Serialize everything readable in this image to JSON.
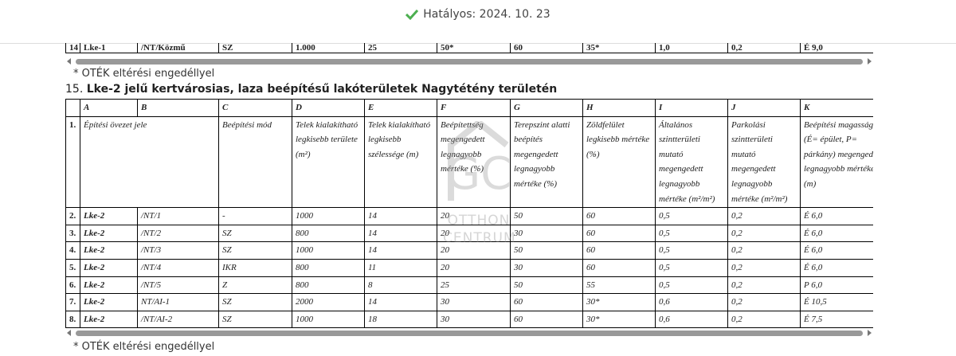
{
  "status": {
    "label": "Hatályos: 2024. 10. 23"
  },
  "prev_table": {
    "rows": [
      [
        "14",
        "Lke-1",
        "/NT/Közmű",
        "SZ",
        "1.000",
        "25",
        "50*",
        "60",
        "35*",
        "1,0",
        "0,2",
        "É 9,0"
      ]
    ]
  },
  "prev_footnote": "* OTÉK eltérési engedéllyel",
  "section": {
    "number": "15.",
    "title": "Lke-2 jelű kertvárosias, laza beépítésű lakóterületek Nagytétény területén"
  },
  "table": {
    "columns": [
      "A",
      "B",
      "C",
      "D",
      "E",
      "F",
      "G",
      "H",
      "I",
      "J",
      "K"
    ],
    "header": [
      "1.",
      "Építési övezet jele",
      "Beépítési mód",
      "Telek kialakítható legkisebb területe (m²)",
      "Telek kialakítható legkisebb szélessége (m)",
      "Beépítettség megengedett legnagyobb mértéke (%)",
      "Terepszint alatti beépítés megengedett legnagyobb mértéke (%)",
      "Zöldfelület legkisebb mértéke (%)",
      "Általános szintterületi mutató megengedett legnagyobb mértéke (m²/m²)",
      "Parkolási szintterületi mutató megengedett legnagyobb mértéke (m²/m²)",
      "Beépítési magasság (É= épület, P= párkány) megengedett legnagyobb mértéke (m)"
    ],
    "rows": [
      [
        "2.",
        "Lke-2",
        "/NT/1",
        "-",
        "1000",
        "14",
        "20",
        "50",
        "60",
        "0,5",
        "0,2",
        "É 6,0"
      ],
      [
        "3.",
        "Lke-2",
        "/NT/2",
        "SZ",
        "800",
        "14",
        "20",
        "30",
        "60",
        "0,5",
        "0,2",
        "É 6,0"
      ],
      [
        "4.",
        "Lke-2",
        "/NT/3",
        "SZ",
        "1000",
        "14",
        "20",
        "50",
        "60",
        "0,5",
        "0,2",
        "É 6,0"
      ],
      [
        "5.",
        "Lke-2",
        "/NT/4",
        "IKR",
        "800",
        "11",
        "20",
        "30",
        "60",
        "0,5",
        "0,2",
        "É 6,0"
      ],
      [
        "6.",
        "Lke-2",
        "/NT/5",
        "Z",
        "800",
        "8",
        "25",
        "50",
        "55",
        "0,5",
        "0,2",
        "P 6,0"
      ],
      [
        "7.",
        "Lke-2",
        "NT/AI-1",
        "SZ",
        "2000",
        "14",
        "30",
        "60",
        "30*",
        "0,6",
        "0,2",
        "É 10,5"
      ],
      [
        "8.",
        "Lke-2",
        "/NT/AI-2",
        "SZ",
        "1000",
        "18",
        "30",
        "60",
        "30*",
        "0,6",
        "0,2",
        "É 7,5"
      ]
    ]
  },
  "footnote": "* OTÉK eltérési engedéllyel",
  "watermark": "OTTHON CENTRUM"
}
